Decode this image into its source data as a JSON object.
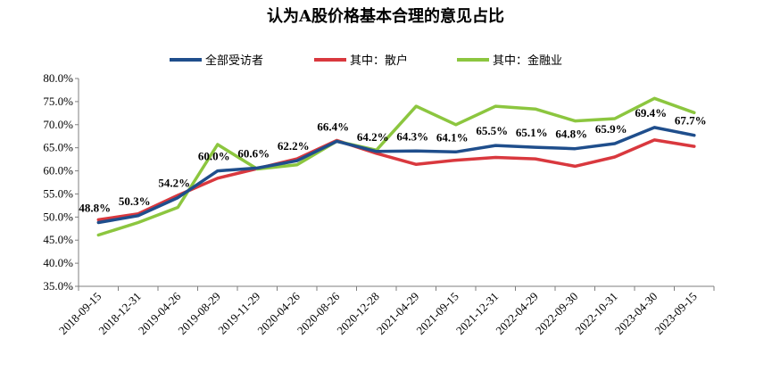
{
  "chart_data": {
    "type": "line",
    "title": "认为A股价格基本合理的意见占比",
    "categories": [
      "2018-09-15",
      "2018-12-31",
      "2019-04-26",
      "2019-08-29",
      "2019-11-29",
      "2020-04-26",
      "2020-08-26",
      "2020-12-28",
      "2021-04-29",
      "2021-09-15",
      "2021-12-31",
      "2022-04-29",
      "2022-09-30",
      "2022-10-31",
      "2023-04-30",
      "2023-09-15"
    ],
    "ylim": [
      35,
      80
    ],
    "yticks": [
      "35.0%",
      "40.0%",
      "45.0%",
      "50.0%",
      "55.0%",
      "60.0%",
      "65.0%",
      "70.0%",
      "75.0%",
      "80.0%"
    ],
    "legend_position": "top",
    "series": [
      {
        "name": "全部受访者",
        "color": "#1f4e8c",
        "values": [
          48.8,
          50.3,
          54.2,
          60.0,
          60.6,
          62.2,
          66.4,
          64.2,
          64.3,
          64.1,
          65.5,
          65.1,
          64.8,
          65.9,
          69.4,
          67.7
        ]
      },
      {
        "name": "其中：散户",
        "color": "#d9383e",
        "values": [
          49.4,
          50.7,
          54.7,
          58.4,
          60.5,
          62.6,
          66.6,
          63.8,
          61.4,
          62.3,
          62.9,
          62.6,
          61.0,
          63.0,
          66.7,
          65.3
        ]
      },
      {
        "name": "其中：金融业",
        "color": "#8cc63f",
        "values": [
          46.1,
          48.8,
          52.1,
          65.7,
          60.4,
          61.3,
          66.4,
          64.5,
          74.0,
          70.0,
          74.0,
          73.4,
          70.8,
          71.3,
          75.7,
          72.6
        ]
      }
    ],
    "data_labels": [
      "48.8%",
      "50.3%",
      "54.2%",
      "60.0%",
      "60.6%",
      "62.2%",
      "66.4%",
      "64.2%",
      "64.3%",
      "64.1%",
      "65.5%",
      "65.1%",
      "64.8%",
      "65.9%",
      "69.4%",
      "67.7%"
    ]
  }
}
